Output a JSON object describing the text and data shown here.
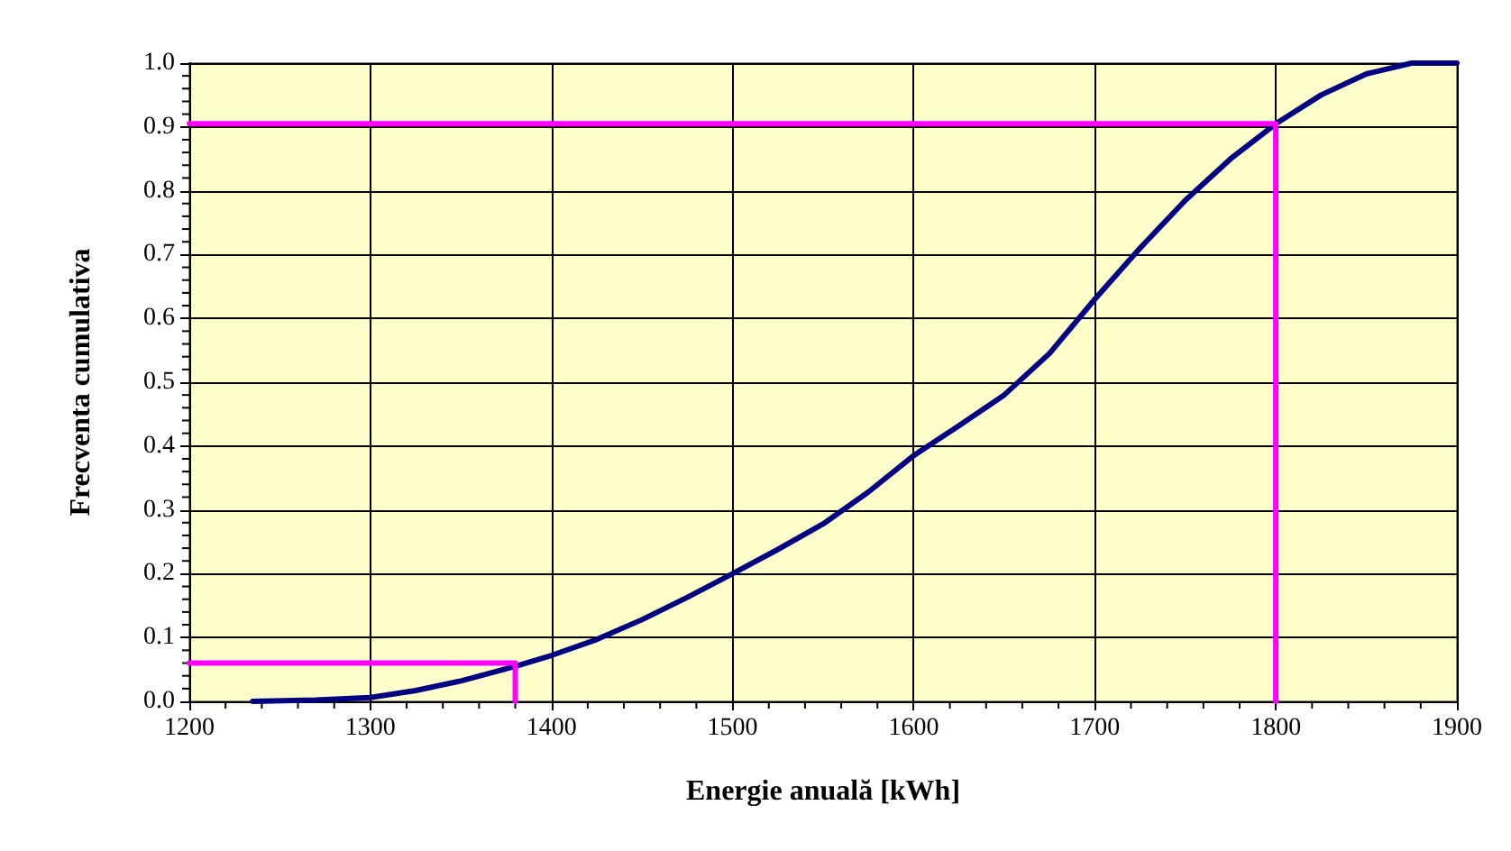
{
  "chart_data": {
    "type": "line",
    "xlabel": "Energie anuală [kWh]",
    "ylabel": "Frecventa cumulativa",
    "xlim": [
      1200,
      1900
    ],
    "xticks": [
      1200,
      1300,
      1400,
      1500,
      1600,
      1700,
      1800,
      1900
    ],
    "ylim": [
      0,
      1
    ],
    "yticks": [
      {
        "value": 0,
        "label": "0.0"
      },
      0.1,
      0.2,
      0.3,
      0.4,
      0.5,
      0.6,
      0.7,
      0.8,
      0.9,
      {
        "value": 1,
        "label": "1.0"
      }
    ],
    "grid": true,
    "marker": "none",
    "line_style": "solid",
    "series": [
      {
        "color": "#000080",
        "x": [
          1235,
          1270,
          1300,
          1325,
          1350,
          1380,
          1400,
          1425,
          1450,
          1475,
          1500,
          1525,
          1550,
          1575,
          1600,
          1625,
          1650,
          1675,
          1700,
          1725,
          1750,
          1775,
          1800,
          1825,
          1850,
          1875,
          1900
        ],
        "values": [
          0,
          0.002,
          0.006,
          0.017,
          0.032,
          0.055,
          0.072,
          0.097,
          0.128,
          0.163,
          0.2,
          0.238,
          0.278,
          0.328,
          0.385,
          0.432,
          0.48,
          0.545,
          0.63,
          0.71,
          0.785,
          0.85,
          0.905,
          0.95,
          0.983,
          1,
          1
        ]
      },
      {
        "color": "#ff00ff",
        "x": [
          1200,
          1380,
          1380
        ],
        "values": [
          0.06,
          0.06,
          0
        ]
      },
      {
        "color": "#ff00ff",
        "x": [
          1200,
          1800,
          1800
        ],
        "values": [
          0.905,
          0.905,
          0
        ]
      }
    ]
  }
}
